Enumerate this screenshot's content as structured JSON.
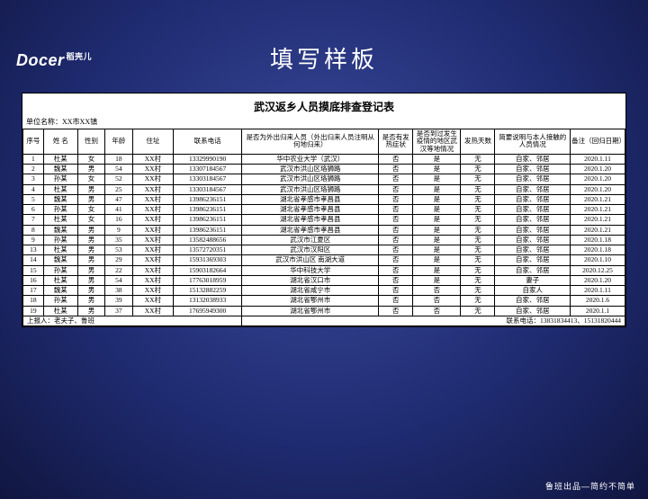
{
  "logo": {
    "en": "Docer",
    "cn": "稻壳儿"
  },
  "slide_title": "填写样板",
  "sheet_title": "武汉返乡人员摸底排查登记表",
  "unit_label": "单位名称：",
  "unit_value": "XX市XX镇",
  "columns": [
    "序号",
    "姓 名",
    "性别",
    "年龄",
    "住址",
    "联系电话",
    "是否为外出归来人员（外出归来人员注明从何地归来）",
    "是否有发热症状",
    "是否到过发生疫情的地区武汉等地情况",
    "发热天数",
    "简要说明与本人接触的人员情况",
    "备注（回归日期）"
  ],
  "rows": [
    [
      "1",
      "杜某",
      "女",
      "18",
      "XX村",
      "13329990190",
      "华中农业大学（武汉）",
      "否",
      "是",
      "无",
      "自家、邻居",
      "2020.1.11"
    ],
    [
      "2",
      "魏某",
      "男",
      "54",
      "XX村",
      "13307184567",
      "武汉市洪山区珞狮路",
      "否",
      "是",
      "无",
      "自家、邻居",
      "2020.1.20"
    ],
    [
      "3",
      "孙某",
      "女",
      "52",
      "XX村",
      "13303184567",
      "武汉市洪山区珞狮路",
      "否",
      "是",
      "无",
      "自家、邻居",
      "2020.1.20"
    ],
    [
      "4",
      "杜某",
      "男",
      "25",
      "XX村",
      "13303184567",
      "武汉市洪山区珞狮路",
      "否",
      "是",
      "无",
      "自家、邻居",
      "2020.1.20"
    ],
    [
      "5",
      "魏某",
      "男",
      "47",
      "XX村",
      "13986236151",
      "湖北省孝感市孝昌县",
      "否",
      "是",
      "无",
      "自家、邻居",
      "2020.1.21"
    ],
    [
      "6",
      "孙某",
      "女",
      "41",
      "XX村",
      "13986236151",
      "湖北省孝感市孝昌县",
      "否",
      "是",
      "无",
      "自家、邻居",
      "2020.1.21"
    ],
    [
      "7",
      "杜某",
      "女",
      "16",
      "XX村",
      "13986236151",
      "湖北省孝感市孝昌县",
      "否",
      "是",
      "无",
      "自家、邻居",
      "2020.1.21"
    ],
    [
      "8",
      "魏某",
      "男",
      "9",
      "XX村",
      "13986236151",
      "湖北省孝感市孝昌县",
      "否",
      "是",
      "无",
      "自家、邻居",
      "2020.1.21"
    ],
    [
      "9",
      "孙某",
      "男",
      "35",
      "XX村",
      "13582488656",
      "武汉市江夏区",
      "否",
      "是",
      "无",
      "自家、邻居",
      "2020.1.18"
    ],
    [
      "13",
      "杜某",
      "男",
      "53",
      "XX村",
      "13572720351",
      "武汉市汉阳区",
      "否",
      "是",
      "无",
      "自家、邻居",
      "2020.1.18"
    ],
    [
      "14",
      "魏某",
      "男",
      "29",
      "XX村",
      "15931369303",
      "武汉市洪山区 南湖大道",
      "否",
      "是",
      "无",
      "自家、邻居",
      "2020.1.10"
    ],
    [
      "15",
      "孙某",
      "男",
      "22",
      "XX村",
      "15903182664",
      "华中科技大学",
      "否",
      "是",
      "无",
      "自家、邻居",
      "2020.12.25"
    ],
    [
      "16",
      "杜某",
      "男",
      "54",
      "XX村",
      "17763018959",
      "湖北省汉口市",
      "否",
      "是",
      "无",
      "妻子",
      "2020.1.20"
    ],
    [
      "17",
      "魏某",
      "男",
      "38",
      "XX村",
      "15132882259",
      "湖北省咸宁市",
      "否",
      "否",
      "无",
      "自家人",
      "2020.1.11"
    ],
    [
      "18",
      "孙某",
      "男",
      "39",
      "XX村",
      "13132038933",
      "湖北省鄂州市",
      "否",
      "否",
      "无",
      "自家、邻居",
      "2020.1.6"
    ],
    [
      "19",
      "杜某",
      "男",
      "37",
      "XX村",
      "17695949300",
      "湖北省鄂州市",
      "否",
      "否",
      "无",
      "自家、邻居",
      "2020.1.1"
    ]
  ],
  "reporter_label": "上报人：",
  "reporter_value": "老夫子、鲁班",
  "contact_label": "联系电话：",
  "contact_value": "13831834413、15131820444",
  "footer": "鲁班出品—简约不简单",
  "colors": {
    "bg_center": "#3a4a9e",
    "bg_edge": "#111640",
    "sheet_bg": "#ffffff",
    "border": "#000000"
  }
}
